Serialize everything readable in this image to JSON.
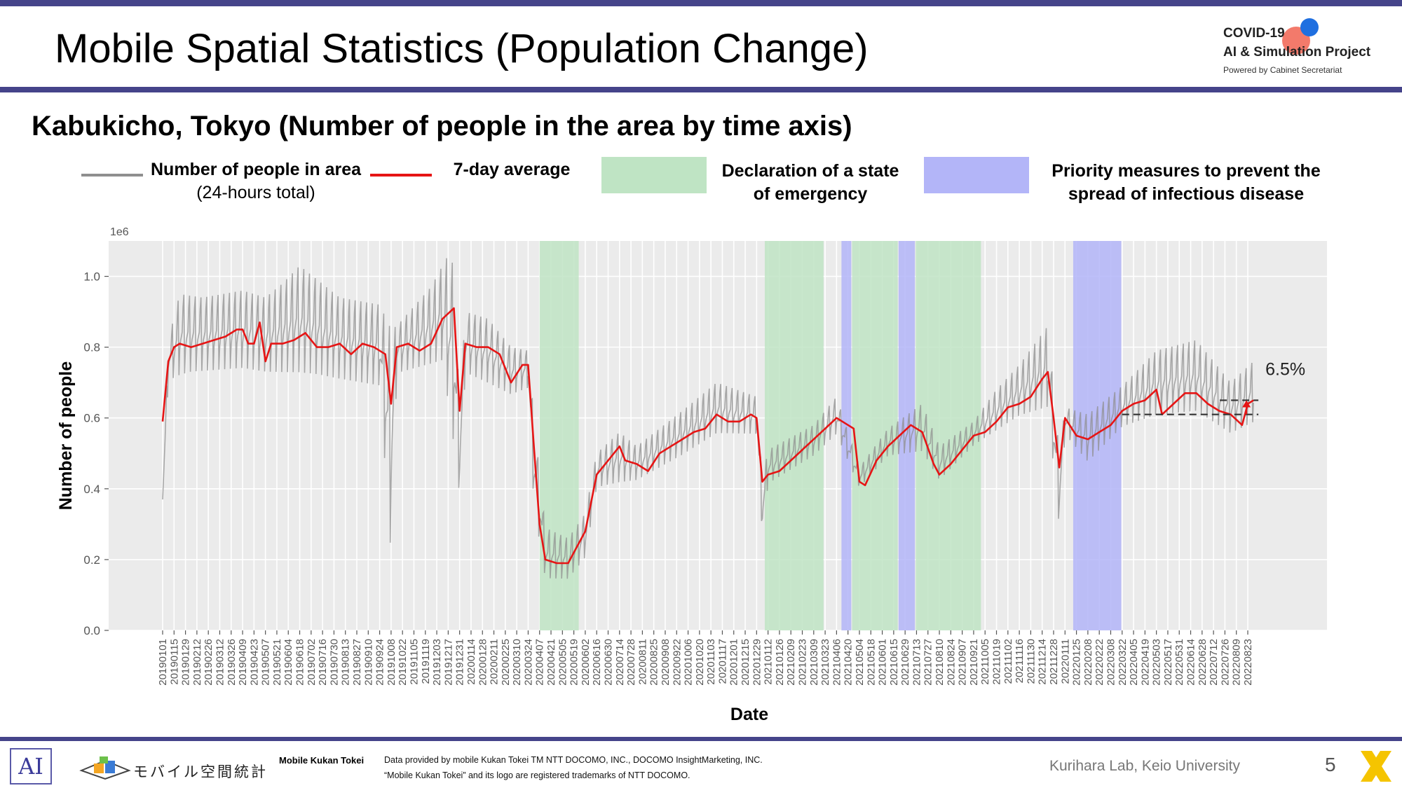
{
  "page": {
    "title": "Mobile Spatial Statistics (Population Change)",
    "page_number": "5",
    "lab": "Kurihara Lab, Keio University"
  },
  "logo": {
    "line1": "COVID-19",
    "line2": "AI & Simulation Project",
    "line3": "Powered by Cabinet Secretariat"
  },
  "legend": {
    "gray_label_1": "Number of people in area",
    "gray_label_2": "(24-hours total)",
    "red_label": "7-day average",
    "green_label_1": "Declaration of a state",
    "green_label_2": "of emergency",
    "blue_label_1": "Priority measures to prevent the",
    "blue_label_2": "spread of infectious disease"
  },
  "footer": {
    "ai_mark": "AI",
    "mkt_logo_text": "モバイル空間統計",
    "brand": "Mobile Kukan Tokei",
    "credit_1": "Data provided by mobile Kukan Tokei TM NTT DOCOMO, INC., DOCOMO InsightMarketing, INC.",
    "credit_2": "“Mobile Kukan Tokei” and its logo are registered trademarks of NTT DOCOMO."
  },
  "colors": {
    "accent": "#45448a",
    "daily_line": "#8f8f8f",
    "avg_line": "#e61515",
    "emergency": "#bfe4c4",
    "priority": "#b3b5f8",
    "plot_bg": "#ebebeb"
  },
  "chart_data": {
    "type": "line",
    "title": "Kabukicho, Tokyo (Number of people in the area by time axis)",
    "xlabel": "Date",
    "ylabel": "Number of people",
    "y_scale_label": "1e6",
    "ylim": [
      0,
      1.1
    ],
    "y_ticks": [
      "0.0",
      "0.2",
      "0.4",
      "0.6",
      "0.8",
      "1.0"
    ],
    "x_ticks": [
      "20190101",
      "20190115",
      "20190129",
      "20190212",
      "20190226",
      "20190312",
      "20190326",
      "20190409",
      "20190423",
      "20190507",
      "20190521",
      "20190604",
      "20190618",
      "20190702",
      "20190716",
      "20190730",
      "20190813",
      "20190827",
      "20190910",
      "20190924",
      "20191008",
      "20191022",
      "20191105",
      "20191119",
      "20191203",
      "20191217",
      "20191231",
      "20200114",
      "20200128",
      "20200211",
      "20200225",
      "20200310",
      "20200324",
      "20200407",
      "20200421",
      "20200505",
      "20200519",
      "20200602",
      "20200616",
      "20200630",
      "20200714",
      "20200728",
      "20200811",
      "20200825",
      "20200908",
      "20200922",
      "20201006",
      "20201020",
      "20201103",
      "20201117",
      "20201201",
      "20201215",
      "20201229",
      "20210112",
      "20210126",
      "20210209",
      "20210223",
      "20210309",
      "20210323",
      "20210406",
      "20210420",
      "20210504",
      "20210518",
      "20210601",
      "20210615",
      "20210629",
      "20210713",
      "20210727",
      "20210810",
      "20210824",
      "20210907",
      "20210921",
      "20211005",
      "20211019",
      "20211102",
      "20211116",
      "20211130",
      "20211214",
      "20211228",
      "20220111",
      "20220125",
      "20220208",
      "20220222",
      "20220308",
      "20220322",
      "20220405",
      "20220419",
      "20220503",
      "20220517",
      "20220531",
      "20220614",
      "20220628",
      "20220712",
      "20220726",
      "20220809",
      "20220823"
    ],
    "grid": true,
    "legend_position": "top",
    "emergency_periods": [
      [
        "20200407",
        "20200525"
      ],
      [
        "20210108",
        "20210321"
      ],
      [
        "20210425",
        "20210620"
      ],
      [
        "20210712",
        "20210930"
      ]
    ],
    "priority_periods": [
      [
        "20210412",
        "20210424"
      ],
      [
        "20210621",
        "20210711"
      ],
      [
        "20220121",
        "20220321"
      ]
    ],
    "series": [
      {
        "name": "7-day average",
        "points": [
          [
            "20190101",
            0.59
          ],
          [
            "20190108",
            0.76
          ],
          [
            "20190115",
            0.8
          ],
          [
            "20190122",
            0.81
          ],
          [
            "20190205",
            0.8
          ],
          [
            "20190219",
            0.81
          ],
          [
            "20190305",
            0.82
          ],
          [
            "20190319",
            0.83
          ],
          [
            "20190402",
            0.85
          ],
          [
            "20190409",
            0.85
          ],
          [
            "20190416",
            0.81
          ],
          [
            "20190423",
            0.81
          ],
          [
            "20190430",
            0.87
          ],
          [
            "20190507",
            0.76
          ],
          [
            "20190514",
            0.81
          ],
          [
            "20190528",
            0.81
          ],
          [
            "20190611",
            0.82
          ],
          [
            "20190625",
            0.84
          ],
          [
            "20190709",
            0.8
          ],
          [
            "20190723",
            0.8
          ],
          [
            "20190806",
            0.81
          ],
          [
            "20190820",
            0.78
          ],
          [
            "20190903",
            0.81
          ],
          [
            "20190917",
            0.8
          ],
          [
            "20190924",
            0.79
          ],
          [
            "20191001",
            0.78
          ],
          [
            "20191008",
            0.64
          ],
          [
            "20191015",
            0.8
          ],
          [
            "20191029",
            0.81
          ],
          [
            "20191112",
            0.79
          ],
          [
            "20191126",
            0.81
          ],
          [
            "20191210",
            0.88
          ],
          [
            "20191224",
            0.91
          ],
          [
            "20191231",
            0.62
          ],
          [
            "20200107",
            0.81
          ],
          [
            "20200121",
            0.8
          ],
          [
            "20200204",
            0.8
          ],
          [
            "20200218",
            0.78
          ],
          [
            "20200303",
            0.7
          ],
          [
            "20200317",
            0.75
          ],
          [
            "20200324",
            0.75
          ],
          [
            "20200331",
            0.52
          ],
          [
            "20200407",
            0.3
          ],
          [
            "20200414",
            0.2
          ],
          [
            "20200428",
            0.19
          ],
          [
            "20200512",
            0.19
          ],
          [
            "20200519",
            0.22
          ],
          [
            "20200602",
            0.28
          ],
          [
            "20200616",
            0.44
          ],
          [
            "20200630",
            0.48
          ],
          [
            "20200714",
            0.52
          ],
          [
            "20200721",
            0.48
          ],
          [
            "20200804",
            0.47
          ],
          [
            "20200818",
            0.45
          ],
          [
            "20200901",
            0.5
          ],
          [
            "20200915",
            0.52
          ],
          [
            "20200929",
            0.54
          ],
          [
            "20201013",
            0.56
          ],
          [
            "20201027",
            0.57
          ],
          [
            "20201110",
            0.61
          ],
          [
            "20201124",
            0.59
          ],
          [
            "20201208",
            0.59
          ],
          [
            "20201222",
            0.61
          ],
          [
            "20201229",
            0.6
          ],
          [
            "20210105",
            0.42
          ],
          [
            "20210112",
            0.44
          ],
          [
            "20210126",
            0.45
          ],
          [
            "20210209",
            0.48
          ],
          [
            "20210223",
            0.51
          ],
          [
            "20210309",
            0.54
          ],
          [
            "20210323",
            0.57
          ],
          [
            "20210406",
            0.6
          ],
          [
            "20210420",
            0.58
          ],
          [
            "20210427",
            0.57
          ],
          [
            "20210504",
            0.42
          ],
          [
            "20210511",
            0.41
          ],
          [
            "20210525",
            0.48
          ],
          [
            "20210608",
            0.52
          ],
          [
            "20210622",
            0.55
          ],
          [
            "20210706",
            0.58
          ],
          [
            "20210720",
            0.56
          ],
          [
            "20210803",
            0.47
          ],
          [
            "20210810",
            0.44
          ],
          [
            "20210824",
            0.47
          ],
          [
            "20210907",
            0.51
          ],
          [
            "20210921",
            0.55
          ],
          [
            "20211005",
            0.56
          ],
          [
            "20211019",
            0.59
          ],
          [
            "20211102",
            0.63
          ],
          [
            "20211116",
            0.64
          ],
          [
            "20211130",
            0.66
          ],
          [
            "20211214",
            0.71
          ],
          [
            "20211221",
            0.73
          ],
          [
            "20211228",
            0.6
          ],
          [
            "20220104",
            0.46
          ],
          [
            "20220111",
            0.6
          ],
          [
            "20220125",
            0.55
          ],
          [
            "20220208",
            0.54
          ],
          [
            "20220222",
            0.56
          ],
          [
            "20220308",
            0.58
          ],
          [
            "20220322",
            0.62
          ],
          [
            "20220405",
            0.64
          ],
          [
            "20220419",
            0.65
          ],
          [
            "20220503",
            0.68
          ],
          [
            "20220510",
            0.61
          ],
          [
            "20220524",
            0.64
          ],
          [
            "20220607",
            0.67
          ],
          [
            "20220621",
            0.67
          ],
          [
            "20220705",
            0.64
          ],
          [
            "20220719",
            0.62
          ],
          [
            "20220802",
            0.61
          ],
          [
            "20220816",
            0.58
          ],
          [
            "20220823",
            0.64
          ],
          [
            "20220830",
            0.65
          ]
        ]
      },
      {
        "name": "Number of people in area",
        "low": [
          [
            "20190101",
            0.37
          ],
          [
            "20190108",
            0.7
          ],
          [
            "20190205",
            0.72
          ],
          [
            "20190409",
            0.73
          ],
          [
            "20190507",
            0.72
          ],
          [
            "20190709",
            0.71
          ],
          [
            "20190924",
            0.68
          ],
          [
            "20191008",
            0.18
          ],
          [
            "20191015",
            0.72
          ],
          [
            "20191210",
            0.75
          ],
          [
            "20191231",
            0.37
          ],
          [
            "20200107",
            0.72
          ],
          [
            "20200303",
            0.66
          ],
          [
            "20200324",
            0.68
          ],
          [
            "20200331",
            0.34
          ],
          [
            "20200414",
            0.14
          ],
          [
            "20200512",
            0.14
          ],
          [
            "20200602",
            0.2
          ],
          [
            "20200616",
            0.4
          ],
          [
            "20200804",
            0.42
          ],
          [
            "20200929",
            0.49
          ],
          [
            "20201110",
            0.55
          ],
          [
            "20201229",
            0.55
          ],
          [
            "20210105",
            0.26
          ],
          [
            "20210112",
            0.41
          ],
          [
            "20210309",
            0.49
          ],
          [
            "20210406",
            0.55
          ],
          [
            "20210504",
            0.4
          ],
          [
            "20210608",
            0.49
          ],
          [
            "20210720",
            0.5
          ],
          [
            "20210810",
            0.42
          ],
          [
            "20210921",
            0.52
          ],
          [
            "20211116",
            0.6
          ],
          [
            "20211221",
            0.62
          ],
          [
            "20220104",
            0.28
          ],
          [
            "20220111",
            0.55
          ],
          [
            "20220208",
            0.47
          ],
          [
            "20220322",
            0.57
          ],
          [
            "20220503",
            0.6
          ],
          [
            "20220621",
            0.61
          ],
          [
            "20220802",
            0.55
          ],
          [
            "20220830",
            0.58
          ]
        ],
        "high": [
          [
            "20190101",
            0.37
          ],
          [
            "20190108",
            0.82
          ],
          [
            "20190122",
            0.95
          ],
          [
            "20190219",
            0.94
          ],
          [
            "20190409",
            0.96
          ],
          [
            "20190507",
            0.94
          ],
          [
            "20190528",
            0.98
          ],
          [
            "20190618",
            1.03
          ],
          [
            "20190806",
            0.94
          ],
          [
            "20190924",
            0.92
          ],
          [
            "20191008",
            0.85
          ],
          [
            "20191015",
            0.86
          ],
          [
            "20191126",
            0.97
          ],
          [
            "20191217",
            1.06
          ],
          [
            "20191224",
            1.03
          ],
          [
            "20191231",
            0.62
          ],
          [
            "20200107",
            0.9
          ],
          [
            "20200204",
            0.88
          ],
          [
            "20200303",
            0.8
          ],
          [
            "20200324",
            0.79
          ],
          [
            "20200331",
            0.6
          ],
          [
            "20200414",
            0.29
          ],
          [
            "20200512",
            0.26
          ],
          [
            "20200602",
            0.33
          ],
          [
            "20200616",
            0.5
          ],
          [
            "20200714",
            0.56
          ],
          [
            "20200804",
            0.52
          ],
          [
            "20200929",
            0.62
          ],
          [
            "20201110",
            0.7
          ],
          [
            "20201229",
            0.66
          ],
          [
            "20210105",
            0.42
          ],
          [
            "20210112",
            0.51
          ],
          [
            "20210309",
            0.58
          ],
          [
            "20210406",
            0.66
          ],
          [
            "20210504",
            0.46
          ],
          [
            "20210608",
            0.57
          ],
          [
            "20210720",
            0.64
          ],
          [
            "20210810",
            0.52
          ],
          [
            "20210921",
            0.59
          ],
          [
            "20211019",
            0.68
          ],
          [
            "20211116",
            0.75
          ],
          [
            "20211221",
            0.86
          ],
          [
            "20220104",
            0.5
          ],
          [
            "20220111",
            0.63
          ],
          [
            "20220208",
            0.61
          ],
          [
            "20220322",
            0.69
          ],
          [
            "20220503",
            0.79
          ],
          [
            "20220621",
            0.82
          ],
          [
            "20220802",
            0.7
          ],
          [
            "20220830",
            0.76
          ]
        ]
      }
    ],
    "annotation": {
      "text": "6.5%",
      "baseline": 0.61,
      "level": 0.65,
      "from": "20220322",
      "to": "20220905"
    }
  }
}
